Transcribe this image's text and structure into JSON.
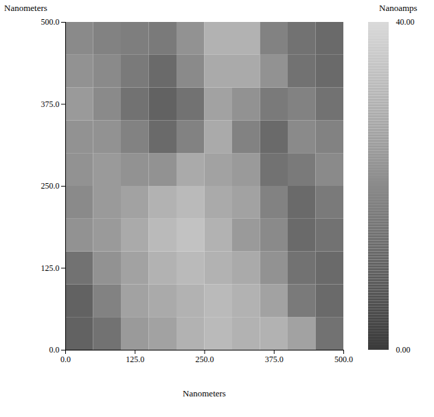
{
  "chart_data": {
    "type": "heatmap",
    "x_label": "Nanometers",
    "y_label": "Nanometers",
    "xlim": [
      0,
      500
    ],
    "ylim": [
      0,
      500
    ],
    "xticks": [
      {
        "value": 0,
        "label": "0.0"
      },
      {
        "value": 125,
        "label": "125.0"
      },
      {
        "value": 250,
        "label": "250.0"
      },
      {
        "value": 375,
        "label": "375.0"
      },
      {
        "value": 500,
        "label": "500.0"
      }
    ],
    "yticks": [
      {
        "value": 0,
        "label": "0.0"
      },
      {
        "value": 125,
        "label": "125.0"
      },
      {
        "value": 250,
        "label": "250.0"
      },
      {
        "value": 375,
        "label": "375.0"
      },
      {
        "value": 500,
        "label": "500.0"
      }
    ],
    "x_bins": [
      0,
      50,
      100,
      150,
      200,
      250,
      300,
      350,
      400,
      450,
      500
    ],
    "y_bins": [
      0,
      50,
      100,
      150,
      200,
      250,
      300,
      350,
      400,
      450,
      500
    ],
    "cells": [
      [
        10,
        14,
        24,
        26,
        30,
        32,
        30,
        30,
        26,
        14
      ],
      [
        10,
        18,
        26,
        28,
        30,
        32,
        30,
        26,
        16,
        12
      ],
      [
        14,
        22,
        26,
        30,
        32,
        30,
        28,
        22,
        14,
        12
      ],
      [
        22,
        24,
        28,
        32,
        34,
        30,
        24,
        20,
        12,
        14
      ],
      [
        20,
        24,
        26,
        30,
        32,
        28,
        26,
        18,
        12,
        16
      ],
      [
        22,
        24,
        22,
        22,
        28,
        26,
        24,
        14,
        16,
        20
      ],
      [
        22,
        22,
        18,
        12,
        18,
        28,
        18,
        12,
        20,
        18
      ],
      [
        24,
        20,
        14,
        10,
        14,
        26,
        22,
        16,
        18,
        14
      ],
      [
        22,
        20,
        16,
        12,
        20,
        28,
        28,
        22,
        14,
        12
      ],
      [
        20,
        18,
        17,
        16,
        22,
        30,
        30,
        18,
        14,
        12
      ]
    ],
    "colorbar_label": "Nanoamps",
    "colorbar_range": [
      0,
      40
    ],
    "colorbar_ticks": [
      {
        "value": 0,
        "label": "0.00"
      },
      {
        "value": 40,
        "label": "40.00"
      }
    ]
  }
}
